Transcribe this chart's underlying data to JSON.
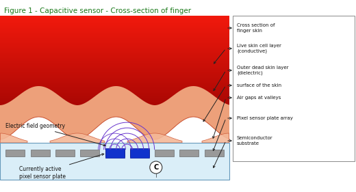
{
  "title": "Figure 1 - Capacitive sensor - Cross-section of finger",
  "title_color": "#1a7a1a",
  "title_fontsize": 7.5,
  "bg_color": "#ffffff",
  "left_label": "Electric field geometry",
  "bottom_label_left": "Currently active\npixel sensor plate",
  "copyright_symbol": "C",
  "finger_skin_top_color": "#f9d0b8",
  "finger_skin_bot_color": "#f4a888",
  "live_skin_top_color": "#c80000",
  "live_skin_bot_color": "#900000",
  "outer_dead_color": "#e89070",
  "sensor_bg_color": "#daeef8",
  "sensor_plate_color": "#999999",
  "sensor_border_color": "#6699bb",
  "arrow_color": "#222222",
  "arc_color": "#6633cc",
  "blue_plate_color": "#1133cc",
  "legend_labels": [
    "Cross section of\nfinger skin",
    "Live skin cell layer\n(conductive)",
    "Outer dead skin layer\n(dielectric)",
    "surface of the skin",
    "Air gaps at valleys",
    "Pixel sensor plate array",
    "Semiconductor\nsubstrate"
  ]
}
